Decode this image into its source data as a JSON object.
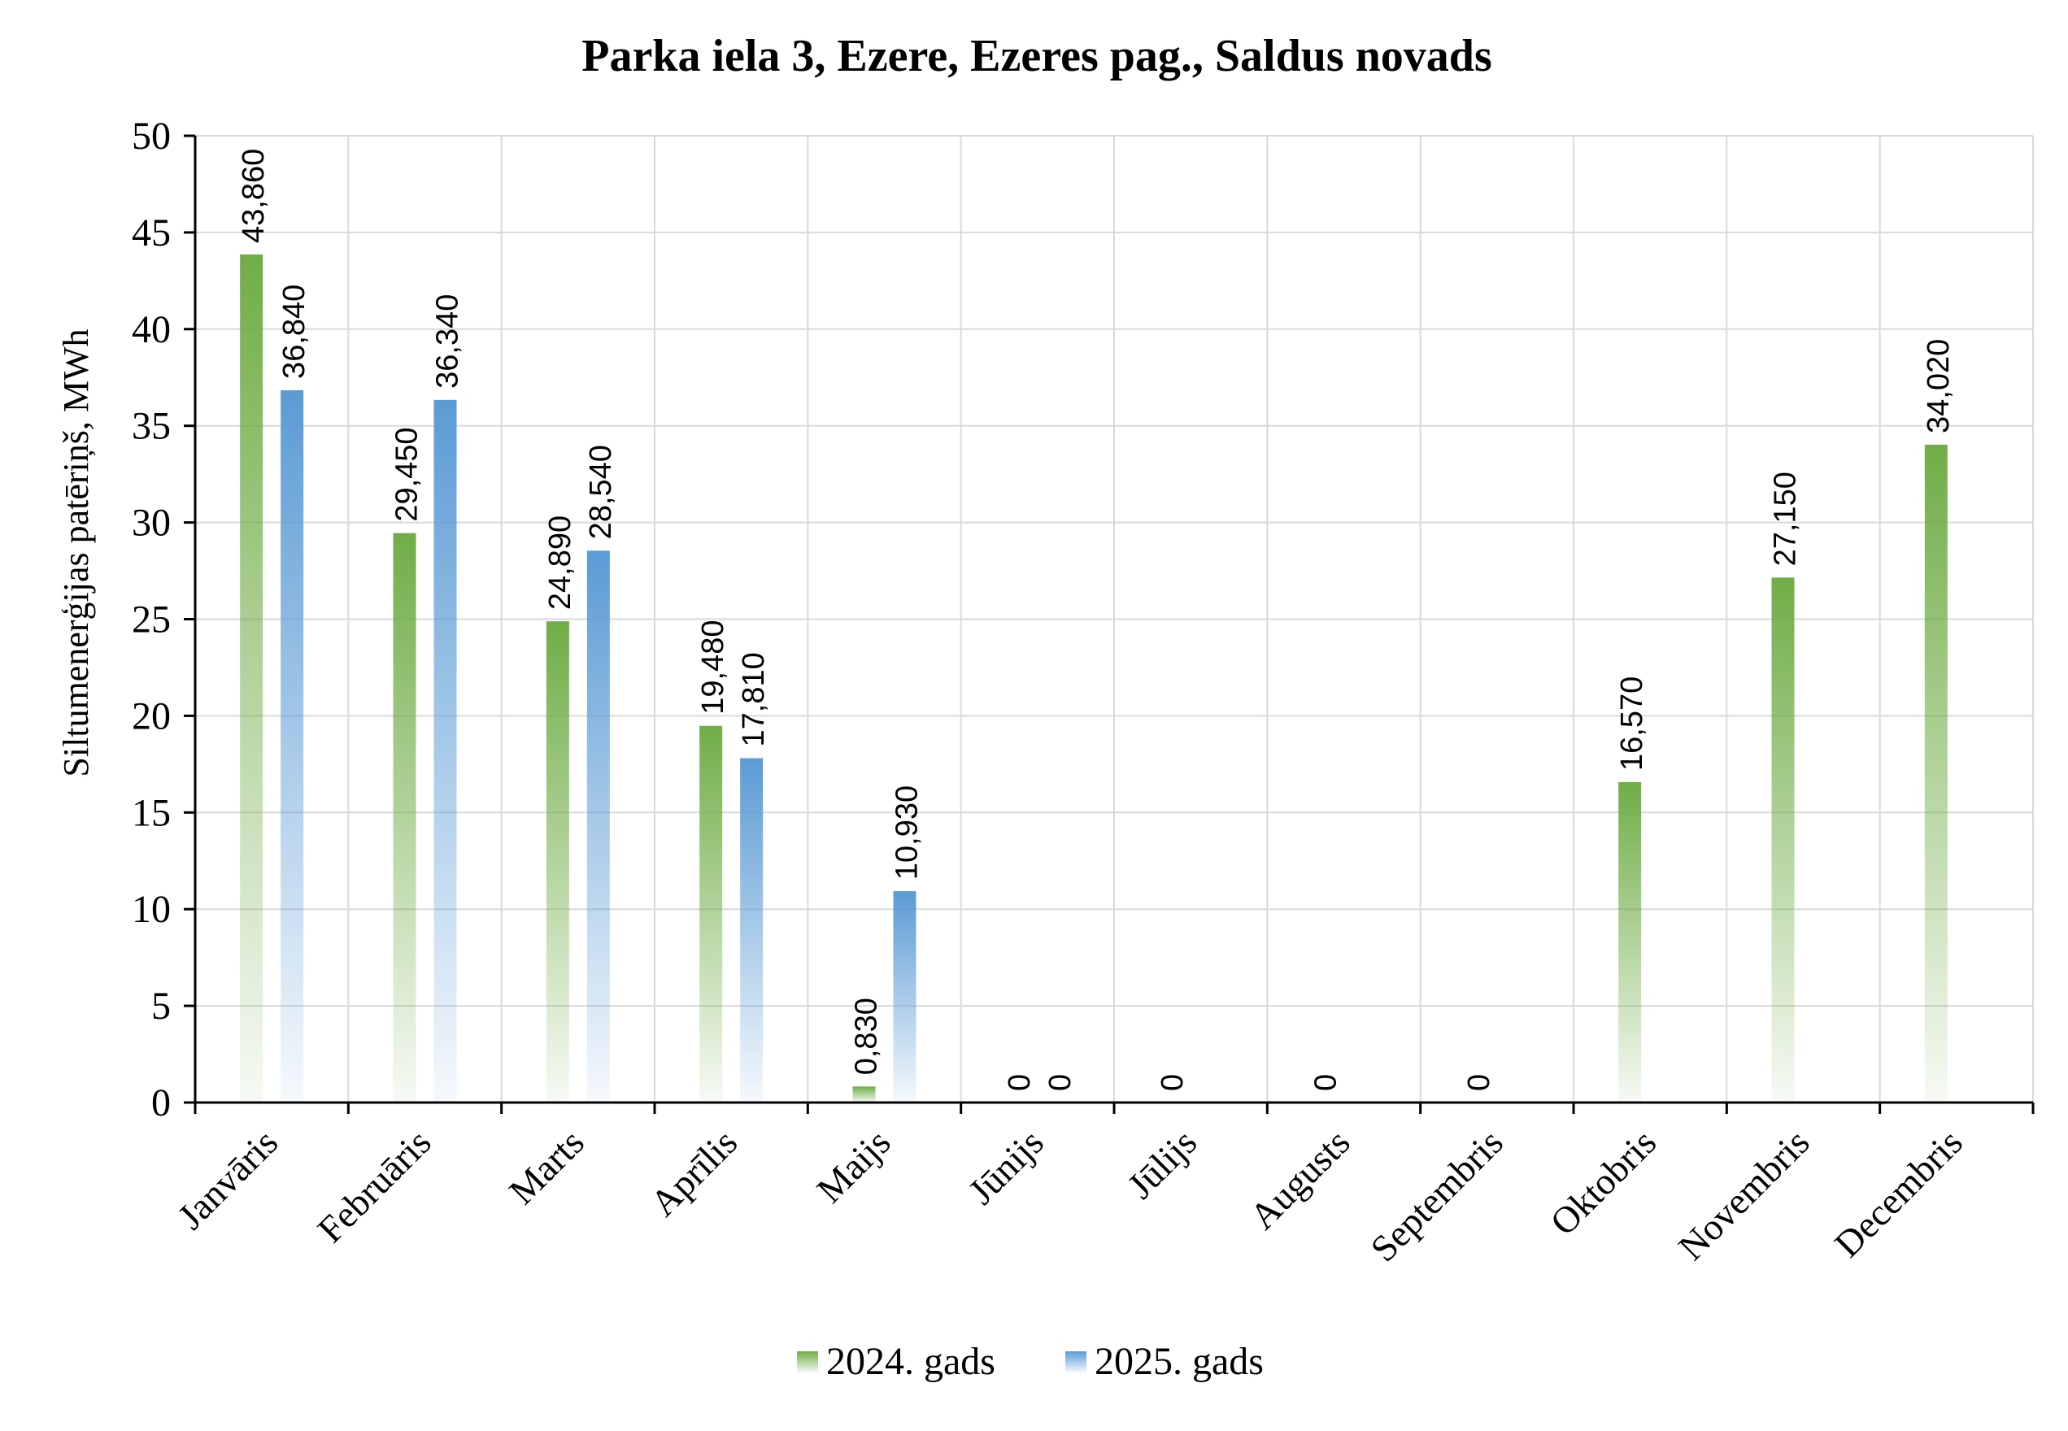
{
  "chart_data": {
    "type": "bar",
    "title": "Parka iela 3, Ezere, Ezeres pag., Saldus novads",
    "xlabel": "",
    "ylabel": "Siltumenerģijas patēriņš, MWh",
    "ylim": [
      0,
      50
    ],
    "yticks": [
      0,
      5,
      10,
      15,
      20,
      25,
      30,
      35,
      40,
      45,
      50
    ],
    "grid": true,
    "legend_position": "bottom",
    "categories": [
      "Janvāris",
      "Februāris",
      "Marts",
      "Aprīlis",
      "Maijs",
      "Jūnijs",
      "Jūlijs",
      "Augusts",
      "Septembris",
      "Oktobris",
      "Novembris",
      "Decembris"
    ],
    "series": [
      {
        "name": "2024. gads",
        "color": "#70ad47",
        "values": [
          43.86,
          29.45,
          24.89,
          19.48,
          0.83,
          0,
          0,
          0,
          0,
          16.57,
          27.15,
          34.02
        ],
        "labels": [
          "43,860",
          "29,450",
          "24,890",
          "19,480",
          "0,830",
          "0",
          "0",
          "0",
          "0",
          "16,570",
          "27,150",
          "34,020"
        ]
      },
      {
        "name": "2025. gads",
        "color": "#5b9bd5",
        "values": [
          36.84,
          36.34,
          28.54,
          17.81,
          10.93,
          0,
          null,
          null,
          null,
          null,
          null,
          null
        ],
        "labels": [
          "36,840",
          "36,340",
          "28,540",
          "17,810",
          "10,930",
          "0",
          null,
          null,
          null,
          null,
          null,
          null
        ]
      }
    ]
  }
}
